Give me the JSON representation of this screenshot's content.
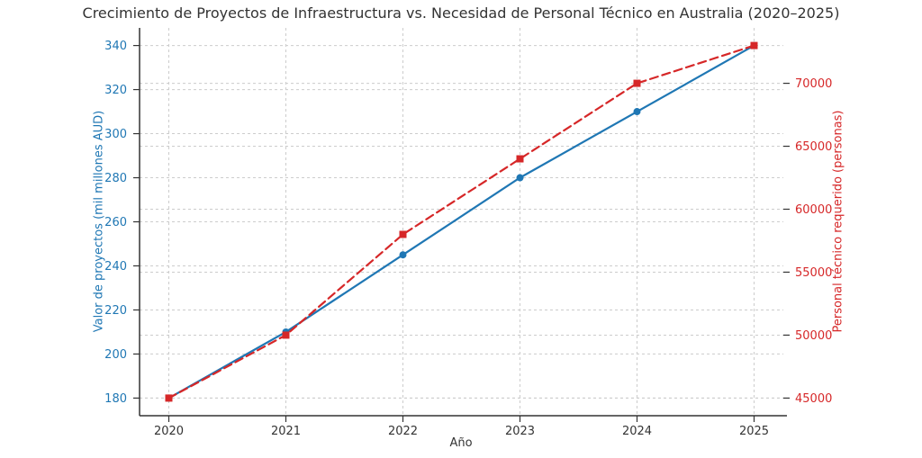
{
  "title": "Crecimiento de Proyectos de Infraestructura vs. Necesidad de Personal Técnico en Australia (2020–2025)",
  "chart_data": {
    "type": "line",
    "x": [
      2020,
      2021,
      2022,
      2023,
      2024,
      2025
    ],
    "xlabel": "Año",
    "x_ticks": [
      2020,
      2021,
      2022,
      2023,
      2024,
      2025
    ],
    "xlim": [
      2019.75,
      2025.25
    ],
    "grid": true,
    "legend": "none",
    "series": [
      {
        "name": "Valor de proyectos (mil millones AUD)",
        "axis": "left",
        "values": [
          180,
          210,
          245,
          280,
          310,
          340
        ],
        "color": "#1f77b4",
        "line_style": "solid",
        "marker": "circle"
      },
      {
        "name": "Personal técnico requerido (personas)",
        "axis": "right",
        "values": [
          45000,
          50000,
          58000,
          64000,
          70000,
          73000
        ],
        "color": "#d62728",
        "line_style": "dashed",
        "marker": "square"
      }
    ],
    "left_axis": {
      "label": "Valor de proyectos (mil millones AUD)",
      "color": "#1f77b4",
      "ticks": [
        180,
        200,
        220,
        240,
        260,
        280,
        300,
        320,
        340
      ],
      "lim": [
        172,
        348
      ]
    },
    "right_axis": {
      "label": "Personal técnico requerido (personas)",
      "color": "#d62728",
      "ticks": [
        45000,
        50000,
        55000,
        60000,
        65000,
        70000
      ],
      "lim": [
        43600,
        74400
      ]
    }
  },
  "colors": {
    "spine": "#333333",
    "grid": "#cccccc",
    "x_tick_text": "#333333",
    "title_text": "#333333"
  }
}
